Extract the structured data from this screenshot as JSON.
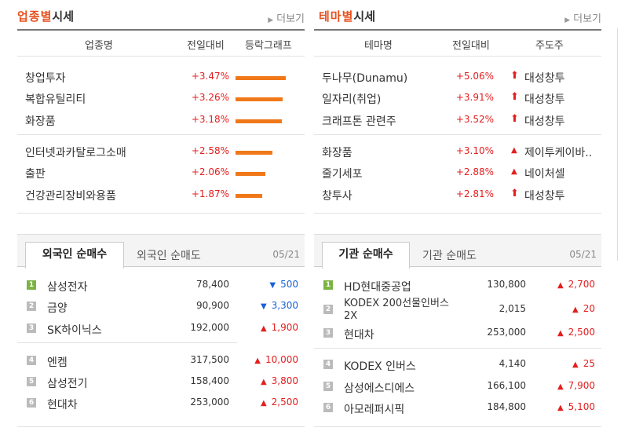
{
  "left": {
    "title_highlight": "업종별",
    "title_rest": "시세",
    "more": "더보기",
    "headers": [
      "업종명",
      "전일대비",
      "등락그래프"
    ],
    "rows": [
      {
        "name": "창업투자",
        "rate": "+3.47%",
        "bar": 3.47
      },
      {
        "name": "복합유틸리티",
        "rate": "+3.26%",
        "bar": 3.26
      },
      {
        "name": "화장품",
        "rate": "+3.18%",
        "bar": 3.18
      },
      {
        "name": "인터넷과카탈로그소매",
        "rate": "+2.58%",
        "bar": 2.58
      },
      {
        "name": "출판",
        "rate": "+2.06%",
        "bar": 2.06
      },
      {
        "name": "건강관리장비와용품",
        "rate": "+1.87%",
        "bar": 1.87
      }
    ],
    "tab_active": "외국인 순매수",
    "tab_inactive": "외국인 순매도",
    "date": "05/21",
    "ranks": [
      {
        "num": "1",
        "name": "삼성전자",
        "price": "78,400",
        "change": "500",
        "dir": "down"
      },
      {
        "num": "2",
        "name": "금양",
        "price": "90,900",
        "change": "3,300",
        "dir": "down"
      },
      {
        "num": "3",
        "name": "SK하이닉스",
        "price": "192,000",
        "change": "1,900",
        "dir": "up"
      },
      {
        "num": "4",
        "name": "엔켐",
        "price": "317,500",
        "change": "10,000",
        "dir": "up"
      },
      {
        "num": "5",
        "name": "삼성전기",
        "price": "158,400",
        "change": "3,800",
        "dir": "up"
      },
      {
        "num": "6",
        "name": "현대차",
        "price": "253,000",
        "change": "2,500",
        "dir": "up"
      }
    ]
  },
  "right": {
    "title_highlight": "테마별",
    "title_rest": "시세",
    "more": "더보기",
    "headers": [
      "테마명",
      "전일대비",
      "주도주"
    ],
    "rows": [
      {
        "name": "두나무(Dunamu)",
        "rate": "+5.06%",
        "lead": "대성창투",
        "icon": "arrow"
      },
      {
        "name": "일자리(취업)",
        "rate": "+3.91%",
        "lead": "대성창투",
        "icon": "arrow"
      },
      {
        "name": "크래프톤 관련주",
        "rate": "+3.52%",
        "lead": "대성창투",
        "icon": "arrow"
      },
      {
        "name": "화장품",
        "rate": "+3.10%",
        "lead": "제이투케이바..",
        "icon": "triangle"
      },
      {
        "name": "줄기세포",
        "rate": "+2.88%",
        "lead": "네이처셀",
        "icon": "triangle"
      },
      {
        "name": "창투사",
        "rate": "+2.81%",
        "lead": "대성창투",
        "icon": "arrow"
      }
    ],
    "tab_active": "기관 순매수",
    "tab_inactive": "기관 순매도",
    "date": "05/21",
    "ranks": [
      {
        "num": "1",
        "name": "HD현대중공업",
        "price": "130,800",
        "change": "2,700",
        "dir": "up"
      },
      {
        "num": "2",
        "name": "KODEX 200선물인버스2X",
        "price": "2,015",
        "change": "20",
        "dir": "up"
      },
      {
        "num": "3",
        "name": "현대차",
        "price": "253,000",
        "change": "2,500",
        "dir": "up"
      },
      {
        "num": "4",
        "name": "KODEX 인버스",
        "price": "4,140",
        "change": "25",
        "dir": "up"
      },
      {
        "num": "5",
        "name": "삼성에스디에스",
        "price": "166,100",
        "change": "7,900",
        "dir": "up"
      },
      {
        "num": "6",
        "name": "아모레퍼시픽",
        "price": "184,800",
        "change": "5,100",
        "dir": "up"
      }
    ]
  },
  "colors": {
    "accent": "#e8501e",
    "bar": "#f07818",
    "up": "#e41e1e",
    "down": "#1a62d6",
    "rank_first": "#7cb342",
    "rank_other": "#bbbbbb"
  }
}
